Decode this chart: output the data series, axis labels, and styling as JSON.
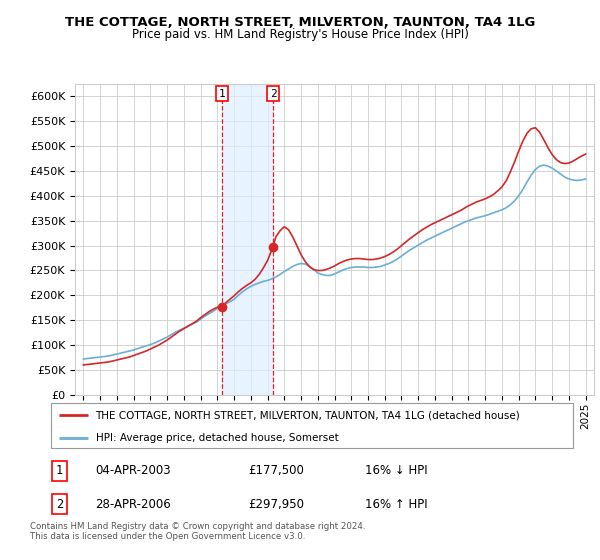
{
  "title": "THE COTTAGE, NORTH STREET, MILVERTON, TAUNTON, TA4 1LG",
  "subtitle": "Price paid vs. HM Land Registry's House Price Index (HPI)",
  "legend_line1": "THE COTTAGE, NORTH STREET, MILVERTON, TAUNTON, TA4 1LG (detached house)",
  "legend_line2": "HPI: Average price, detached house, Somerset",
  "footnote": "Contains HM Land Registry data © Crown copyright and database right 2024.\nThis data is licensed under the Open Government Licence v3.0.",
  "sale1_label": "1",
  "sale1_date": "04-APR-2003",
  "sale1_price": "£177,500",
  "sale1_hpi": "16% ↓ HPI",
  "sale2_label": "2",
  "sale2_date": "28-APR-2006",
  "sale2_price": "£297,950",
  "sale2_hpi": "16% ↑ HPI",
  "sale1_x": 2003.27,
  "sale1_y": 177500,
  "sale2_x": 2006.33,
  "sale2_y": 297950,
  "hpi_color": "#6baed6",
  "price_color": "#d62728",
  "marker_color": "#d62728",
  "grid_color": "#cccccc",
  "shade_color": "#ddeeff",
  "background_color": "#ffffff",
  "ylim": [
    0,
    625000
  ],
  "xlim": [
    1994.5,
    2025.5
  ],
  "yticks": [
    0,
    50000,
    100000,
    150000,
    200000,
    250000,
    300000,
    350000,
    400000,
    450000,
    500000,
    550000,
    600000
  ],
  "ytick_labels": [
    "£0",
    "£50K",
    "£100K",
    "£150K",
    "£200K",
    "£250K",
    "£300K",
    "£350K",
    "£400K",
    "£450K",
    "£500K",
    "£550K",
    "£600K"
  ],
  "xticks": [
    1995,
    1996,
    1997,
    1998,
    1999,
    2000,
    2001,
    2002,
    2003,
    2004,
    2005,
    2006,
    2007,
    2008,
    2009,
    2010,
    2011,
    2012,
    2013,
    2014,
    2015,
    2016,
    2017,
    2018,
    2019,
    2020,
    2021,
    2022,
    2023,
    2024,
    2025
  ],
  "hpi_data_x": [
    1995.0,
    1995.25,
    1995.5,
    1995.75,
    1996.0,
    1996.25,
    1996.5,
    1996.75,
    1997.0,
    1997.25,
    1997.5,
    1997.75,
    1998.0,
    1998.25,
    1998.5,
    1998.75,
    1999.0,
    1999.25,
    1999.5,
    1999.75,
    2000.0,
    2000.25,
    2000.5,
    2000.75,
    2001.0,
    2001.25,
    2001.5,
    2001.75,
    2002.0,
    2002.25,
    2002.5,
    2002.75,
    2003.0,
    2003.25,
    2003.5,
    2003.75,
    2004.0,
    2004.25,
    2004.5,
    2004.75,
    2005.0,
    2005.25,
    2005.5,
    2005.75,
    2006.0,
    2006.25,
    2006.5,
    2006.75,
    2007.0,
    2007.25,
    2007.5,
    2007.75,
    2008.0,
    2008.25,
    2008.5,
    2008.75,
    2009.0,
    2009.25,
    2009.5,
    2009.75,
    2010.0,
    2010.25,
    2010.5,
    2010.75,
    2011.0,
    2011.25,
    2011.5,
    2011.75,
    2012.0,
    2012.25,
    2012.5,
    2012.75,
    2013.0,
    2013.25,
    2013.5,
    2013.75,
    2014.0,
    2014.25,
    2014.5,
    2014.75,
    2015.0,
    2015.25,
    2015.5,
    2015.75,
    2016.0,
    2016.25,
    2016.5,
    2016.75,
    2017.0,
    2017.25,
    2017.5,
    2017.75,
    2018.0,
    2018.25,
    2018.5,
    2018.75,
    2019.0,
    2019.25,
    2019.5,
    2019.75,
    2020.0,
    2020.25,
    2020.5,
    2020.75,
    2021.0,
    2021.25,
    2021.5,
    2021.75,
    2022.0,
    2022.25,
    2022.5,
    2022.75,
    2023.0,
    2023.25,
    2023.5,
    2023.75,
    2024.0,
    2024.25,
    2024.5,
    2024.75,
    2025.0
  ],
  "hpi_data_y": [
    72000,
    73000,
    74000,
    75000,
    76000,
    77000,
    78000,
    80000,
    82000,
    84000,
    86000,
    88000,
    90000,
    93000,
    96000,
    98000,
    101000,
    104000,
    108000,
    112000,
    116000,
    121000,
    126000,
    130000,
    134000,
    138000,
    142000,
    146000,
    152000,
    158000,
    163000,
    168000,
    174000,
    178000,
    183000,
    187000,
    192000,
    200000,
    207000,
    213000,
    218000,
    222000,
    225000,
    228000,
    230000,
    233000,
    237000,
    242000,
    248000,
    253000,
    258000,
    262000,
    264000,
    263000,
    258000,
    252000,
    245000,
    242000,
    240000,
    240000,
    243000,
    247000,
    251000,
    254000,
    256000,
    257000,
    257000,
    257000,
    256000,
    256000,
    257000,
    258000,
    261000,
    264000,
    268000,
    273000,
    279000,
    285000,
    291000,
    296000,
    301000,
    306000,
    311000,
    315000,
    319000,
    323000,
    327000,
    331000,
    335000,
    339000,
    343000,
    347000,
    350000,
    353000,
    356000,
    358000,
    360000,
    363000,
    366000,
    369000,
    372000,
    376000,
    382000,
    390000,
    400000,
    413000,
    428000,
    442000,
    453000,
    460000,
    462000,
    460000,
    456000,
    450000,
    444000,
    438000,
    434000,
    432000,
    431000,
    432000,
    434000
  ],
  "price_data_x": [
    1995.0,
    1995.25,
    1995.5,
    1995.75,
    1996.0,
    1996.25,
    1996.5,
    1996.75,
    1997.0,
    1997.25,
    1997.5,
    1997.75,
    1998.0,
    1998.25,
    1998.5,
    1998.75,
    1999.0,
    1999.25,
    1999.5,
    1999.75,
    2000.0,
    2000.25,
    2000.5,
    2000.75,
    2001.0,
    2001.25,
    2001.5,
    2001.75,
    2002.0,
    2002.25,
    2002.5,
    2002.75,
    2003.0,
    2003.27,
    2003.5,
    2003.75,
    2004.0,
    2004.25,
    2004.5,
    2004.75,
    2005.0,
    2005.25,
    2005.5,
    2005.75,
    2006.0,
    2006.33,
    2006.5,
    2006.75,
    2007.0,
    2007.25,
    2007.5,
    2007.75,
    2008.0,
    2008.25,
    2008.5,
    2008.75,
    2009.0,
    2009.25,
    2009.5,
    2009.75,
    2010.0,
    2010.25,
    2010.5,
    2010.75,
    2011.0,
    2011.25,
    2011.5,
    2011.75,
    2012.0,
    2012.25,
    2012.5,
    2012.75,
    2013.0,
    2013.25,
    2013.5,
    2013.75,
    2014.0,
    2014.25,
    2014.5,
    2014.75,
    2015.0,
    2015.25,
    2015.5,
    2015.75,
    2016.0,
    2016.25,
    2016.5,
    2016.75,
    2017.0,
    2017.25,
    2017.5,
    2017.75,
    2018.0,
    2018.25,
    2018.5,
    2018.75,
    2019.0,
    2019.25,
    2019.5,
    2019.75,
    2020.0,
    2020.25,
    2020.5,
    2020.75,
    2021.0,
    2021.25,
    2021.5,
    2021.75,
    2022.0,
    2022.25,
    2022.5,
    2022.75,
    2023.0,
    2023.25,
    2023.5,
    2023.75,
    2024.0,
    2024.25,
    2024.5,
    2024.75,
    2025.0
  ],
  "price_data_y": [
    60000,
    61000,
    62000,
    63000,
    64000,
    65000,
    66000,
    68000,
    70000,
    72000,
    74000,
    76000,
    79000,
    82000,
    85000,
    88000,
    92000,
    96000,
    100000,
    105000,
    110000,
    116000,
    122000,
    128000,
    133000,
    138000,
    143000,
    148000,
    155000,
    161000,
    167000,
    172000,
    176000,
    177500,
    185000,
    192000,
    199000,
    207000,
    214000,
    220000,
    225000,
    232000,
    242000,
    255000,
    270000,
    297950,
    318000,
    330000,
    338000,
    332000,
    318000,
    300000,
    282000,
    268000,
    258000,
    252000,
    250000,
    250000,
    252000,
    255000,
    259000,
    264000,
    268000,
    271000,
    273000,
    274000,
    274000,
    273000,
    272000,
    272000,
    273000,
    275000,
    278000,
    282000,
    287000,
    293000,
    300000,
    307000,
    314000,
    320000,
    326000,
    332000,
    337000,
    342000,
    346000,
    350000,
    354000,
    358000,
    362000,
    366000,
    370000,
    375000,
    380000,
    384000,
    388000,
    391000,
    394000,
    398000,
    403000,
    410000,
    418000,
    430000,
    448000,
    468000,
    490000,
    510000,
    526000,
    535000,
    537000,
    528000,
    513000,
    497000,
    483000,
    473000,
    467000,
    465000,
    466000,
    470000,
    475000,
    480000,
    484000
  ]
}
